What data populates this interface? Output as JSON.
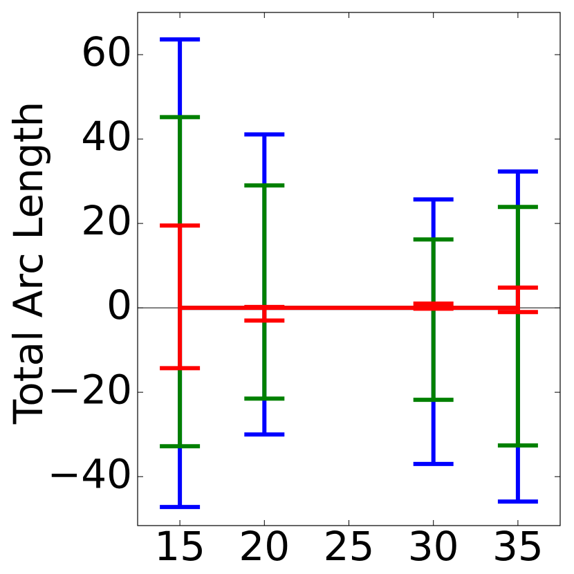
{
  "chart_data": {
    "type": "errorbar",
    "ylabel": "Total Arc Length",
    "x": [
      15,
      20,
      30,
      35
    ],
    "series": [
      {
        "color": "#0000ff",
        "values": [
          0,
          0,
          0,
          0
        ],
        "yerr_low": [
          47.2,
          30,
          37,
          45.9
        ],
        "yerr_high": [
          63.6,
          41.1,
          25.7,
          32.3
        ]
      },
      {
        "color": "#008000",
        "values": [
          0,
          0,
          0,
          0
        ],
        "yerr_low": [
          32.8,
          21.5,
          21.8,
          32.6
        ],
        "yerr_high": [
          45.2,
          29,
          16.2,
          23.9
        ]
      },
      {
        "color": "#ff0000",
        "values": [
          0,
          0,
          0,
          0
        ],
        "yerr_low": [
          14.3,
          3,
          0.2,
          1
        ],
        "yerr_high": [
          19.5,
          0.2,
          1,
          4.8
        ]
      }
    ],
    "hline": 0,
    "xlim": [
      12.5,
      37.5
    ],
    "ylim": [
      -51.6,
      70
    ],
    "xticks": [
      15,
      20,
      25,
      30,
      35
    ],
    "yticks": [
      {
        "value": -40,
        "label": "−40"
      },
      {
        "value": -20,
        "label": "−20"
      },
      0,
      20,
      40,
      60
    ]
  }
}
